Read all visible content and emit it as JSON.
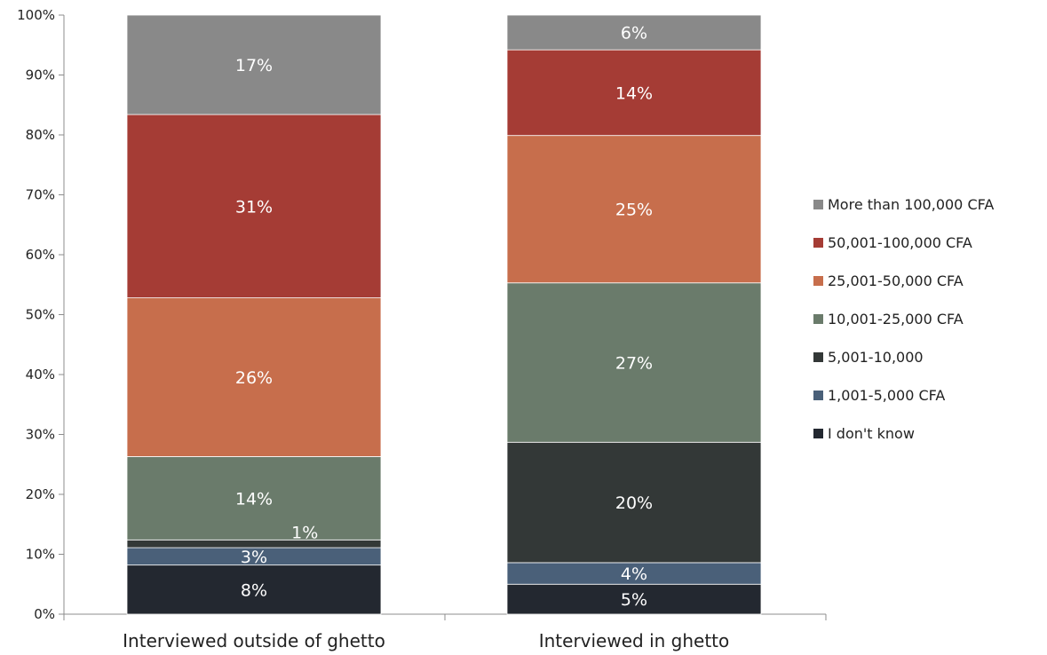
{
  "chart_data": {
    "type": "bar",
    "stacked": true,
    "categories": [
      "Interviewed outside of ghetto",
      "Interviewed in ghetto"
    ],
    "ylim": [
      0,
      100
    ],
    "y_ticks": [
      0,
      10,
      20,
      30,
      40,
      50,
      60,
      70,
      80,
      90,
      100
    ],
    "y_tick_labels": [
      "0%",
      "10%",
      "20%",
      "30%",
      "40%",
      "50%",
      "60%",
      "70%",
      "80%",
      "90%",
      "100%"
    ],
    "legend_position": "right",
    "grid": false,
    "series": [
      {
        "name": "I don't know",
        "color": "#232830",
        "values": [
          8.2,
          5.0
        ],
        "labels": [
          "8%",
          "5%"
        ]
      },
      {
        "name": "1,001-5,000 CFA",
        "color": "#4a6079",
        "values": [
          2.9,
          3.6
        ],
        "labels": [
          "3%",
          "4%"
        ]
      },
      {
        "name": "5,001-10,000",
        "color": "#333837",
        "values": [
          1.3,
          20.1
        ],
        "labels": [
          "1%",
          "20%"
        ]
      },
      {
        "name": "10,001-25,000 CFA",
        "color": "#6a7b6b",
        "values": [
          13.9,
          26.6
        ],
        "labels": [
          "14%",
          "27%"
        ]
      },
      {
        "name": "25,001-50,000 CFA",
        "color": "#c76e4c",
        "values": [
          26.5,
          24.6
        ],
        "labels": [
          "26%",
          "25%"
        ]
      },
      {
        "name": "50,001-100,000 CFA",
        "color": "#a53c35",
        "values": [
          30.6,
          14.3
        ],
        "labels": [
          "31%",
          "14%"
        ]
      },
      {
        "name": "More than 100,000 CFA",
        "color": "#898989",
        "values": [
          16.6,
          5.8
        ],
        "labels": [
          "17%",
          "6%"
        ]
      }
    ]
  }
}
